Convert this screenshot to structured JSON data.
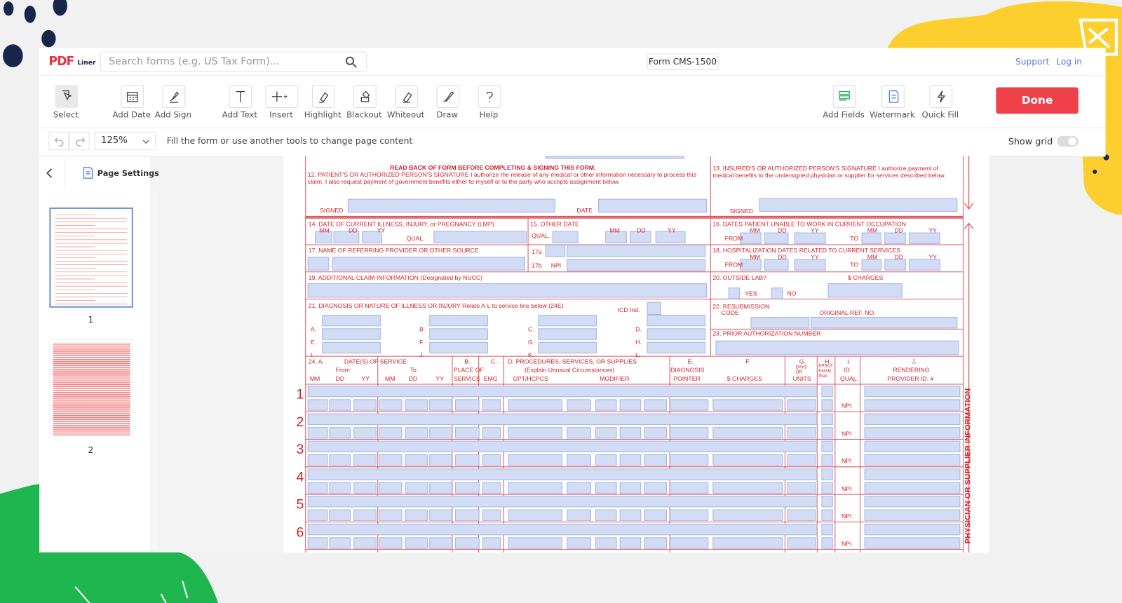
{
  "header": {
    "logo_main": "PDF",
    "logo_sub": "Liner",
    "search_placeholder": "Search forms (e.g. US Tax Form)...",
    "form_name": "Form CMS-1500",
    "links": [
      "Support",
      "Log in"
    ]
  },
  "toolbar": {
    "tools": [
      "Select",
      "Add Date",
      "Add Sign",
      "Add Text",
      "Insert",
      "Highlight",
      "Blackout",
      "Whiteout",
      "Draw",
      "Help"
    ],
    "right_tools": [
      "Add Fields",
      "Watermark",
      "Quick Fill"
    ],
    "done": "Done"
  },
  "subbar": {
    "zoom": "125%",
    "hint": "Fill the form or use another tools to change page content",
    "show_grid": "Show grid"
  },
  "sidebar": {
    "page_settings": "Page Settings",
    "pages": [
      "1",
      "2"
    ]
  },
  "form": {
    "header_note": "READ BACK OF FORM BEFORE COMPLETING & SIGNING THIS FORM.",
    "f12": "12. PATIENT'S OR AUTHORIZED PERSON'S SIGNATURE I authorize the release of any medical or other information necessary to process this claim. I also request payment of government benefits either to myself or to the party who accepts assignment below.",
    "signed": "SIGNED",
    "date": "DATE",
    "f13": "13. INSURED'S OR AUTHORIZED PERSON'S SIGNATURE I authorize payment of medical benefits to the undersigned physician or supplier for services described below.",
    "f14": "14. DATE OF CURRENT ILLNESS, INJURY, or PREGNANCY (LMP)",
    "qual": "QUAL.",
    "date_parts": [
      "MM",
      "DD",
      "YY"
    ],
    "f15": "15. OTHER DATE",
    "f16": "16. DATES PATIENT UNABLE TO WORK IN CURRENT OCCUPATION",
    "from": "FROM",
    "to": "TO",
    "f17": "17. NAME OF REFERRING PROVIDER OR OTHER SOURCE",
    "f17a": "17a",
    "f17b": "17b",
    "npi": "NPI",
    "f18": "18. HOSPITALIZATION DATES RELATED TO CURRENT SERVICES",
    "f19": "19. ADDITIONAL CLAIM INFORMATION (Designated by NUCC)",
    "f20": "20. OUTSIDE LAB?",
    "charges": "$ CHARGES",
    "yes": "YES",
    "no": "NO",
    "f21": "21. DIAGNOSIS OR NATURE OF ILLNESS OR INJURY Relate A-L to service line below (24E)",
    "icd": "ICD Ind.",
    "letters": [
      "A.",
      "B.",
      "C.",
      "D.",
      "E.",
      "F.",
      "G.",
      "H.",
      "I.",
      "J.",
      "K.",
      "L."
    ],
    "f22": "22. RESUBMISSION",
    "f22_code": "CODE",
    "original_ref": "ORIGINAL REF. NO.",
    "f23": "23. PRIOR AUTHORIZATION NUMBER",
    "section24": {
      "a": "24. A.",
      "dates": "DATE(S) OF SERVICE",
      "from": "From",
      "to": "To",
      "b": "B.",
      "place": "PLACE OF",
      "service": "SERVICE",
      "c": "C.",
      "emg": "EMG",
      "d": "D. PROCEDURES, SERVICES, OR SUPPLIES",
      "explain": "(Explain Unusual Circumstances)",
      "cpt": "CPT/HCPCS",
      "modifier": "MODIFIER",
      "e": "E.",
      "diagnosis": "DIAGNOSIS",
      "pointer": "POINTER",
      "f": "F.",
      "charges": "$ CHARGES",
      "g": "G.",
      "days": "DAYS OR",
      "units": "UNITS",
      "h": "H.",
      "epsdt": "EPSDT Family Plan",
      "i": "I.",
      "id": "ID.",
      "qual": "QUAL.",
      "j": "J.",
      "rendering": "RENDERING",
      "provider": "PROVIDER ID. #"
    },
    "rows": [
      "1",
      "2",
      "3",
      "4",
      "5",
      "6"
    ],
    "side": "PHYSICIAN OR SUPPLIER INFORMATION"
  }
}
